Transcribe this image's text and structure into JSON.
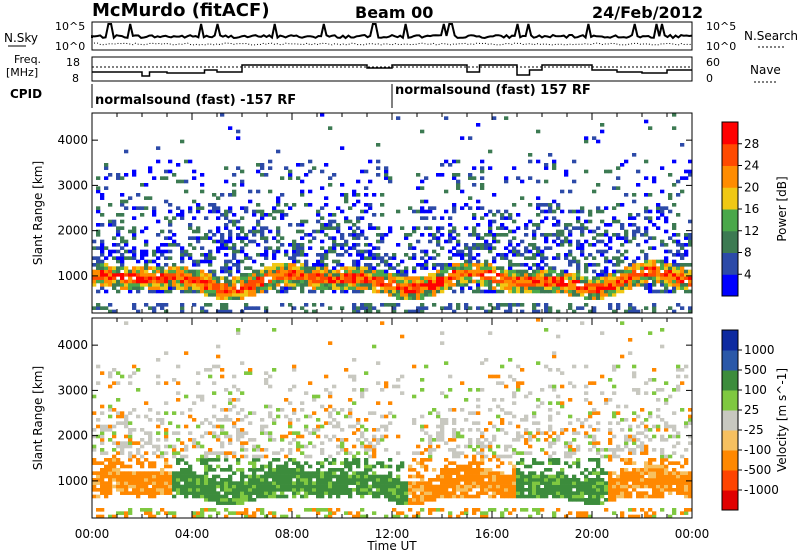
{
  "header": {
    "station": "McMurdo (fitACF)",
    "beam": "Beam 00",
    "date": "24/Feb/2012"
  },
  "status_panels": {
    "nsky_label": "N.Sky",
    "nsky_ticks": [
      "10^5",
      "10^0"
    ],
    "nsearch_label": "N.Search",
    "right_ticks_top": [
      "10^5",
      "10^0"
    ],
    "freq_label_1": "Freq.",
    "freq_label_2": "[MHz]",
    "freq_ticks": [
      "18",
      "8"
    ],
    "nave_label": "Nave",
    "nave_ticks": [
      "60",
      "0"
    ],
    "cpid_label": "CPID",
    "cpid_segments": [
      {
        "text": "normalsound (fast) -157 RF",
        "start_hour": 0
      },
      {
        "text": "normalsound (fast) 157 RF",
        "start_hour": 12
      }
    ]
  },
  "colors": {
    "power_scale": [
      "#0000ff",
      "#2c4aa8",
      "#3c7a52",
      "#4aa84a",
      "#f0c814",
      "#ff8c00",
      "#ff4a00",
      "#ff0000"
    ],
    "velocity_scale": [
      "#e00000",
      "#ff4400",
      "#ff8800",
      "#f6c060",
      "#c8c8c0",
      "#7fc840",
      "#3c8c3c",
      "#2a58a8",
      "#0d2aa0"
    ],
    "ground_scatter": "#9a9a9a"
  },
  "chart_data": [
    {
      "type": "heatmap",
      "title": "Power",
      "xlabel": "Time UT",
      "ylabel": "Slant Range [km]",
      "xlim": [
        0,
        24
      ],
      "ylim": [
        180,
        4600
      ],
      "y_ticks": [
        "1000",
        "2000",
        "3000",
        "4000"
      ],
      "colorbar_label": "Power [dB]",
      "colorbar_ticks": [
        "4",
        "8",
        "12",
        "16",
        "20",
        "24",
        "28"
      ],
      "series": [
        {
          "name": "Power",
          "description_points": [
            [
              0.5,
              900,
              24
            ],
            [
              2.0,
              1000,
              16
            ],
            [
              6.0,
              1100,
              12
            ],
            [
              9.0,
              900,
              20
            ],
            [
              12.0,
              900,
              24
            ],
            [
              15.0,
              850,
              28
            ],
            [
              19.0,
              1000,
              20
            ],
            [
              22.0,
              1050,
              16
            ]
          ]
        }
      ]
    },
    {
      "type": "heatmap",
      "title": "Velocity",
      "xlabel": "Time UT",
      "ylabel": "Slant Range [km]",
      "xlim": [
        0,
        24
      ],
      "ylim": [
        180,
        4600
      ],
      "y_ticks": [
        "1000",
        "2000",
        "3000",
        "4000"
      ],
      "x_ticks": [
        "00:00",
        "04:00",
        "08:00",
        "12:00",
        "16:00",
        "20:00",
        "00:00"
      ],
      "colorbar_label": "Velocity [m s^-1]",
      "colorbar_ticks": [
        "1000",
        "500",
        "100",
        "25",
        "-25",
        "-100",
        "-500",
        "-1000"
      ],
      "series": [
        {
          "name": "Velocity",
          "description_points": [
            [
              1.0,
              1100,
              -100
            ],
            [
              4.0,
              1000,
              100
            ],
            [
              8.0,
              950,
              100
            ],
            [
              14.0,
              1100,
              -100
            ],
            [
              18.0,
              1050,
              -100
            ],
            [
              22.0,
              950,
              -100
            ]
          ]
        }
      ]
    }
  ],
  "x_axis": {
    "ticks": [
      "00:00",
      "04:00",
      "08:00",
      "12:00",
      "16:00",
      "20:00",
      "00:00"
    ],
    "label": "Time UT"
  }
}
